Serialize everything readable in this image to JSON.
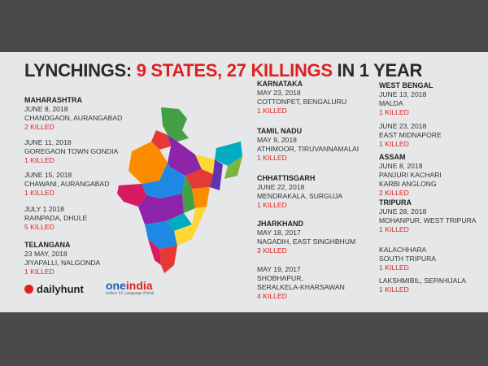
{
  "title": {
    "prefix": "LYNCHINGS: ",
    "highlight": "9 STATES, 27 KILLINGS",
    "suffix": " IN 1 YEAR"
  },
  "columns": [
    [
      {
        "state": "MAHARASHTRA",
        "date": "JUNE 8, 2018",
        "place": "CHANDGAON, AURANGABAD",
        "killed": "2 KILLED"
      },
      {
        "state": "",
        "date": "JUNE 11, 2018",
        "place": "GOREGAON TOWN GONDIA",
        "killed": "1 KILLED"
      },
      {
        "state": "",
        "date": "JUNE 15, 2018",
        "place": "CHAWANI, AURANGABAD",
        "killed": "1 KILLED"
      },
      {
        "state": "",
        "date": "JULY 1 2018",
        "place": "RAINPADA, DHULE",
        "killed": "5 KILLED"
      },
      {
        "state": "TELANGANA",
        "date": "23 MAY, 2018",
        "place": "JIYAPALLI, NALGONDA",
        "killed": "1 KILLED"
      }
    ],
    [
      {
        "state": "KARNATAKA",
        "date": "MAY 23, 2018",
        "place": "COTTONPET, BENGALURU",
        "killed": "1 KILLED"
      },
      {
        "state": "TAMIL NADU",
        "date": "MAY 9, 2018",
        "place": "ATHIMOOR, TIRUVANNAMALAI",
        "killed": "1 KILLED"
      },
      {
        "state": "CHHATTISGARH",
        "date": "JUNE 22, 2018",
        "place": "MENDRAKALA, SURGUJA",
        "killed": "1 KILLED"
      },
      {
        "state": "JHARKHAND",
        "date": "MAY 18, 2017",
        "place": "NAGADIH, EAST SINGHBHUM",
        "killed": "3 KILLED"
      },
      {
        "state": "",
        "date": "MAY 19, 2017",
        "place": "SHOBHAPUR,",
        "place2": "SERALKELA-KHARSAWAN",
        "killed": "4 KILLED"
      }
    ],
    [
      {
        "state": "WEST BENGAL",
        "date": "JUNE 13, 2018",
        "place": "MALDA",
        "killed": "1 KILLED"
      },
      {
        "state": "",
        "date": "JUNE 23, 2018",
        "place": "EAST MIDNAPORE",
        "killed": "1 KILLED"
      },
      {
        "state": "ASSAM",
        "date": "JUNE 8, 2018",
        "place": "PANJURI KACHARI",
        "place2": "KARBI ANGLONG",
        "killed": "2 KILLED"
      },
      {
        "state": "TRIPURA",
        "date": "JUNE 28, 2018",
        "place": "MOHANPUR, WEST TRIPURA",
        "killed": "1 KILLED"
      },
      {
        "state": "",
        "date": "",
        "place": "KALACHHARA",
        "place2": "SOUTH TRIPURA",
        "killed": "1 KILLED"
      },
      {
        "state": "",
        "date": "",
        "place": "LAKSHMIBIL, SEPAHIJALA",
        "killed": "1 KILLED"
      }
    ]
  ],
  "logos": {
    "dailyhunt": "dailyhunt",
    "oneindia_a": "one",
    "oneindia_b": "india",
    "oneindia_tag": "India's #1 Language Portal"
  },
  "map": {
    "icon": "india-map-icon",
    "colors": [
      "#e53935",
      "#8e24aa",
      "#1e88e5",
      "#43a047",
      "#fdd835",
      "#fb8c00",
      "#00acc1",
      "#d81b60",
      "#5e35b1",
      "#7cb342"
    ]
  }
}
